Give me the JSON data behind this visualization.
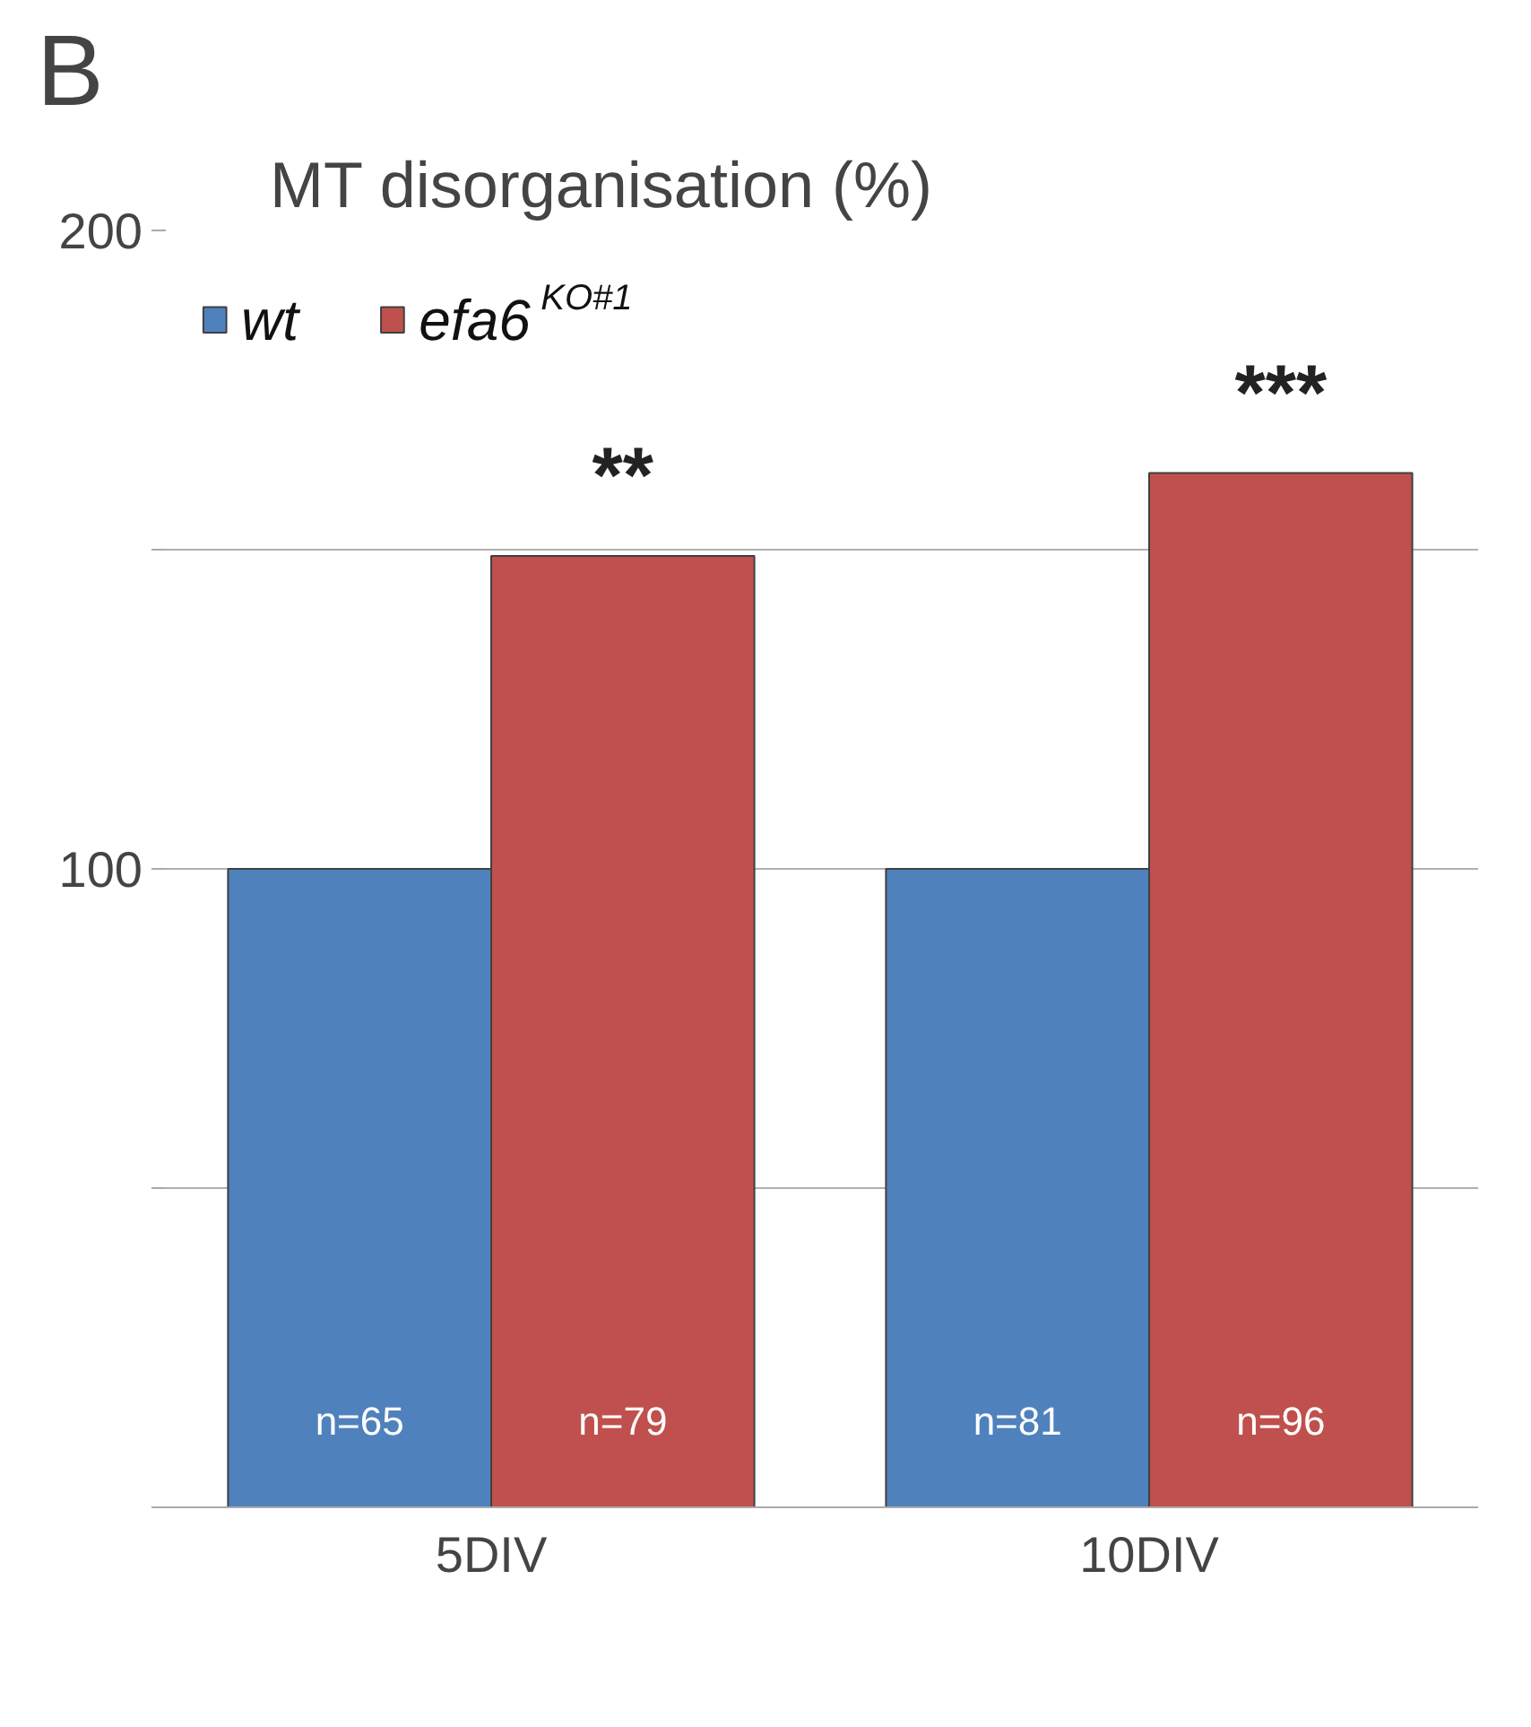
{
  "chart_data": {
    "type": "bar",
    "title": "MT disorganisation (%)",
    "categories": [
      "5DIV",
      "10DIV"
    ],
    "series": [
      {
        "name": "wt",
        "color": "#4f81bd",
        "values": [
          100,
          100
        ]
      },
      {
        "name": "efa6$^{KO#1}$",
        "color": "#c0504d",
        "values": [
          149,
          162
        ]
      }
    ],
    "ylim": [
      0,
      200
    ],
    "yticks": [
      {
        "value": 0,
        "label": null
      },
      {
        "value": 50,
        "label": null
      },
      100,
      {
        "value": 150,
        "label": null
      },
      200
    ],
    "grid": "y",
    "legend": "top left",
    "annotations": [
      "B",
      "**",
      "***",
      {
        "text": "n=65",
        "x": "5DIV",
        "y": 10
      },
      {
        "text": "n=79",
        "x": "5DIV",
        "y": 10
      },
      {
        "text": "n=81",
        "x": "10DIV",
        "y": 10
      },
      {
        "text": "n=96",
        "x": "10DIV",
        "y": 10
      }
    ]
  }
}
